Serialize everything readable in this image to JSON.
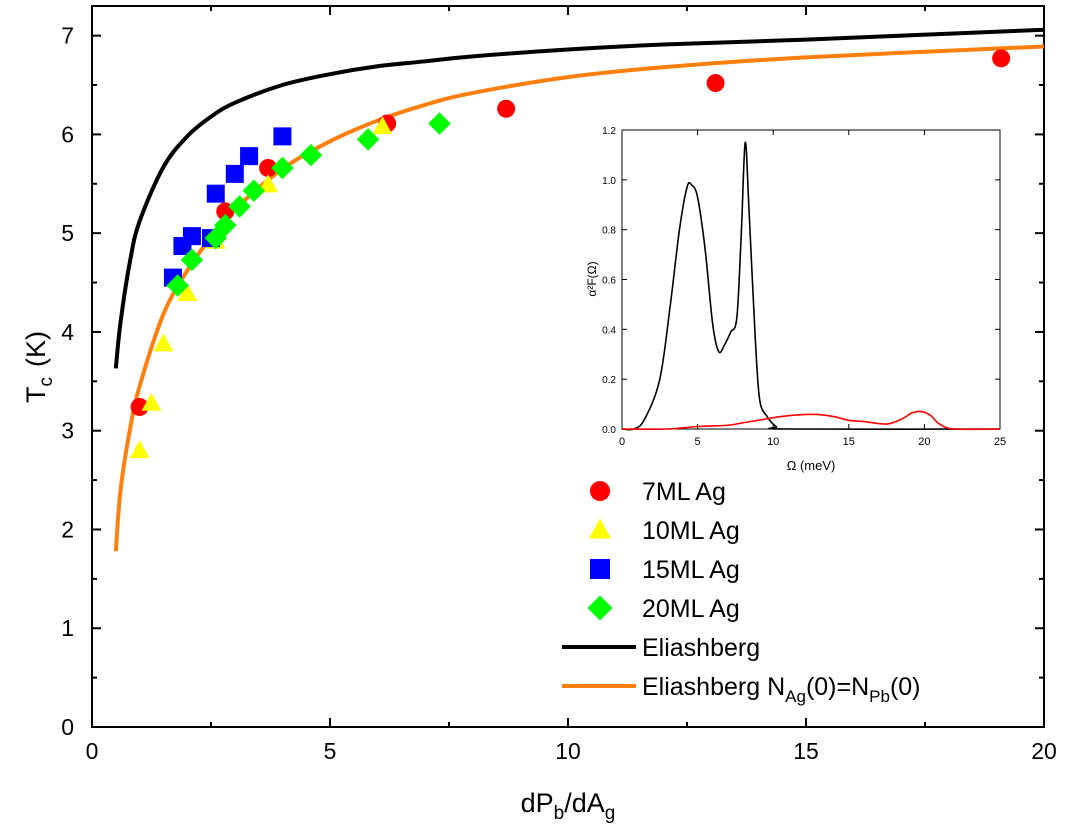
{
  "chart_data": [
    {
      "type": "scatter",
      "title": "",
      "xlabel": {
        "main": "dP",
        "sub1": "b",
        "mid": "/dA",
        "sub2": "g"
      },
      "ylabel": {
        "main": "T",
        "sub": "c",
        "unit": "(K)"
      },
      "xlim": [
        0,
        20
      ],
      "ylim": [
        0,
        7.3
      ],
      "xticks": [
        0,
        5,
        10,
        15,
        20
      ],
      "yticks": [
        0,
        1,
        2,
        3,
        4,
        5,
        6,
        7
      ],
      "xtick_labels": [
        "0",
        "5",
        "10",
        "15",
        "20"
      ],
      "ytick_labels": [
        "0",
        "1",
        "2",
        "3",
        "4",
        "5",
        "6",
        "7"
      ],
      "grid": false,
      "legend_position": "bottom-right",
      "colors": {
        "7ML": "#ff0000",
        "10ML": "#ffff00",
        "15ML": "#0000ff",
        "20ML": "#00ff00",
        "eliashberg": "#000000",
        "eliashberg_n": "#ff7f0e"
      },
      "series": [
        {
          "key": "7ML",
          "name": "7ML Ag",
          "marker": "circle",
          "points": [
            [
              1.0,
              3.24
            ],
            [
              2.8,
              5.22
            ],
            [
              3.7,
              5.66
            ],
            [
              6.2,
              6.11
            ],
            [
              8.7,
              6.26
            ],
            [
              13.1,
              6.52
            ],
            [
              19.1,
              6.77
            ]
          ]
        },
        {
          "key": "10ML",
          "name": "10ML Ag",
          "marker": "triangle",
          "points": [
            [
              1.0,
              2.8
            ],
            [
              1.25,
              3.28
            ],
            [
              1.5,
              3.88
            ],
            [
              2.0,
              4.39
            ],
            [
              2.6,
              4.92
            ],
            [
              3.7,
              5.49
            ],
            [
              6.1,
              6.08
            ]
          ]
        },
        {
          "key": "15ML",
          "name": "15ML Ag",
          "marker": "square",
          "points": [
            [
              1.7,
              4.55
            ],
            [
              1.9,
              4.87
            ],
            [
              2.1,
              4.97
            ],
            [
              2.5,
              4.95
            ],
            [
              2.6,
              5.4
            ],
            [
              3.0,
              5.6
            ],
            [
              3.3,
              5.78
            ],
            [
              4.0,
              5.98
            ]
          ]
        },
        {
          "key": "20ML",
          "name": "20ML Ag",
          "marker": "diamond",
          "points": [
            [
              1.8,
              4.47
            ],
            [
              2.1,
              4.73
            ],
            [
              2.6,
              4.95
            ],
            [
              2.8,
              5.08
            ],
            [
              3.1,
              5.27
            ],
            [
              3.4,
              5.43
            ],
            [
              4.0,
              5.66
            ],
            [
              4.6,
              5.79
            ],
            [
              5.8,
              5.95
            ],
            [
              7.3,
              6.11
            ]
          ]
        },
        {
          "key": "eliashberg",
          "name": "Eliashberg",
          "marker": "line",
          "points": [
            [
              0.5,
              3.63
            ],
            [
              0.6,
              4.1
            ],
            [
              0.8,
              4.72
            ],
            [
              1.0,
              5.12
            ],
            [
              1.5,
              5.67
            ],
            [
              2.0,
              5.98
            ],
            [
              2.5,
              6.18
            ],
            [
              3.0,
              6.32
            ],
            [
              4.0,
              6.5
            ],
            [
              5.0,
              6.61
            ],
            [
              6.0,
              6.69
            ],
            [
              7.0,
              6.74
            ],
            [
              8.0,
              6.79
            ],
            [
              10.0,
              6.86
            ],
            [
              12.0,
              6.91
            ],
            [
              15.0,
              6.96
            ],
            [
              20.0,
              7.06
            ]
          ]
        },
        {
          "key": "eliashberg_n",
          "name": "Eliashberg N_Ag(0)=N_Pb(0)",
          "marker": "line",
          "points": [
            [
              0.5,
              1.78
            ],
            [
              0.6,
              2.4
            ],
            [
              0.8,
              3.02
            ],
            [
              1.0,
              3.45
            ],
            [
              1.5,
              4.18
            ],
            [
              2.0,
              4.62
            ],
            [
              2.5,
              4.96
            ],
            [
              3.0,
              5.24
            ],
            [
              4.0,
              5.65
            ],
            [
              5.0,
              5.93
            ],
            [
              6.0,
              6.14
            ],
            [
              7.0,
              6.3
            ],
            [
              8.0,
              6.42
            ],
            [
              10.0,
              6.58
            ],
            [
              12.0,
              6.68
            ],
            [
              15.0,
              6.78
            ],
            [
              20.0,
              6.89
            ]
          ]
        }
      ],
      "legend": [
        {
          "key": "7ML",
          "label": "7ML Ag"
        },
        {
          "key": "10ML",
          "label": "10ML Ag"
        },
        {
          "key": "15ML",
          "label": "15ML Ag"
        },
        {
          "key": "20ML",
          "label": "20ML Ag"
        },
        {
          "key": "eliashberg",
          "label": "Eliashberg"
        },
        {
          "key": "eliashberg_n",
          "label_parts": {
            "a": "Eliashberg N",
            "s1": "Ag",
            "b": "(0)=N",
            "s2": "Pb",
            "c": "(0)"
          }
        }
      ]
    },
    {
      "type": "line",
      "title": "",
      "xlabel": "Ω  (meV)",
      "ylabel": "α²F(Ω)",
      "xlim": [
        0,
        25
      ],
      "ylim": [
        0,
        1.2
      ],
      "xticks": [
        0,
        5,
        10,
        15,
        20,
        25
      ],
      "yticks": [
        0.0,
        0.2,
        0.4,
        0.6,
        0.8,
        1.0,
        1.2
      ],
      "xtick_labels": [
        "0",
        "5",
        "10",
        "15",
        "20",
        "25"
      ],
      "ytick_labels": [
        "0.0",
        "0.2",
        "0.4",
        "0.6",
        "0.8",
        "1.0",
        "1.2"
      ],
      "grid": false,
      "colors": {
        "black": "#000000",
        "red": "#ff0000"
      },
      "series": [
        {
          "key": "black",
          "points": [
            [
              0,
              0
            ],
            [
              0.8,
              0.0
            ],
            [
              1.5,
              0.04
            ],
            [
              2.5,
              0.2
            ],
            [
              3.2,
              0.5
            ],
            [
              3.8,
              0.8
            ],
            [
              4.3,
              0.97
            ],
            [
              4.6,
              0.98
            ],
            [
              5.0,
              0.93
            ],
            [
              5.5,
              0.72
            ],
            [
              6.0,
              0.42
            ],
            [
              6.4,
              0.31
            ],
            [
              6.8,
              0.34
            ],
            [
              7.2,
              0.39
            ],
            [
              7.6,
              0.45
            ],
            [
              7.9,
              0.8
            ],
            [
              8.15,
              1.15
            ],
            [
              8.4,
              0.88
            ],
            [
              8.8,
              0.38
            ],
            [
              9.1,
              0.12
            ],
            [
              9.6,
              0.05
            ],
            [
              10.2,
              0.01
            ],
            [
              11.0,
              0
            ],
            [
              25,
              0
            ]
          ]
        },
        {
          "key": "red",
          "points": [
            [
              0,
              0
            ],
            [
              3.0,
              0.0
            ],
            [
              5.0,
              0.01
            ],
            [
              7.0,
              0.015
            ],
            [
              8.0,
              0.025
            ],
            [
              9.0,
              0.035
            ],
            [
              10.5,
              0.05
            ],
            [
              12.0,
              0.058
            ],
            [
              13.0,
              0.058
            ],
            [
              14.0,
              0.05
            ],
            [
              15.0,
              0.035
            ],
            [
              16.0,
              0.03
            ],
            [
              17.5,
              0.02
            ],
            [
              18.5,
              0.04
            ],
            [
              19.2,
              0.065
            ],
            [
              19.8,
              0.07
            ],
            [
              20.4,
              0.055
            ],
            [
              21.0,
              0.02
            ],
            [
              22.0,
              0.0
            ],
            [
              25,
              0
            ]
          ]
        }
      ]
    }
  ]
}
